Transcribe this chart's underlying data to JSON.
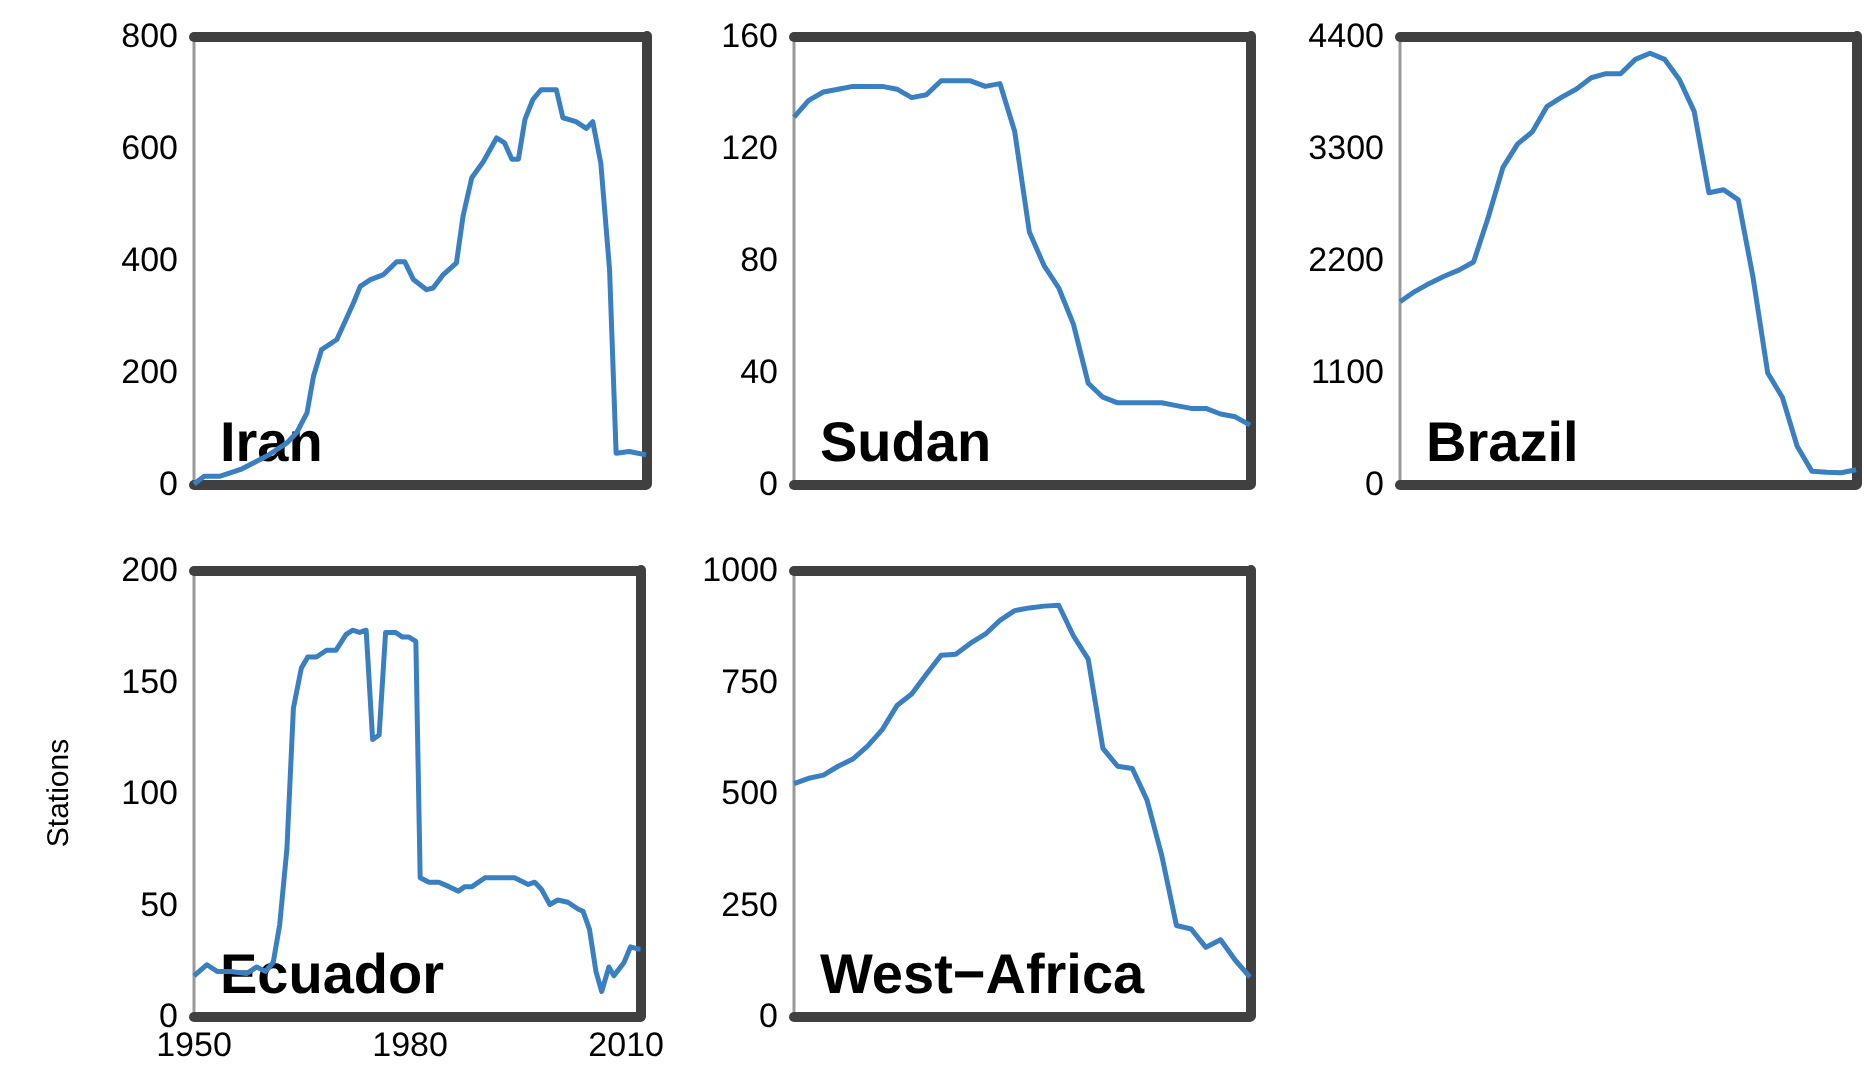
{
  "chart_data": [
    {
      "type": "line",
      "title": "Iran",
      "xlim": [
        1950,
        2012
      ],
      "ylim": [
        0,
        800
      ],
      "yticks": [
        0,
        200,
        400,
        600,
        800
      ],
      "tick_labels": "y",
      "x": [
        1950.0,
        1951.4,
        1953.6,
        1956.4,
        1960.0,
        1962.8,
        1964.1,
        1965.5,
        1966.4,
        1967.5,
        1969.6,
        1971.9,
        1972.8,
        1974.2,
        1976.0,
        1977.8,
        1978.9,
        1980.1,
        1981.9,
        1982.8,
        1984.2,
        1986.0,
        1986.9,
        1988.1,
        1989.7,
        1991.5,
        1992.6,
        1993.6,
        1994.5,
        1995.4,
        1996.5,
        1997.6,
        1999.7,
        2000.6,
        2002.4,
        2003.8,
        2004.7,
        2005.8,
        2007.0,
        2007.9,
        2009.7,
        2012.0
      ],
      "series": [
        {
          "color": "#3a7fc1",
          "values": [
            0,
            14,
            14,
            26,
            50,
            74,
            92,
            127,
            193,
            240,
            258,
            324,
            353,
            365,
            374,
            397,
            397,
            365,
            347,
            350,
            374,
            395,
            478,
            547,
            576,
            618,
            609,
            580,
            580,
            651,
            687,
            704,
            704,
            654,
            647,
            635,
            647,
            573,
            383,
            55,
            58,
            52
          ]
        }
      ]
    },
    {
      "type": "line",
      "title": "Sudan",
      "ylim": [
        0,
        160
      ],
      "yticks": [
        0,
        40,
        80,
        120,
        160
      ],
      "tick_labels": "y",
      "categories": [
        null,
        null,
        null,
        null,
        null,
        null,
        null,
        null,
        null,
        null,
        null,
        null,
        null,
        null,
        null,
        null,
        null,
        null,
        null,
        null,
        null,
        null,
        null,
        null,
        null,
        null,
        null,
        null,
        null,
        null,
        null,
        null
      ],
      "series": [
        {
          "color": "#3a7fc1",
          "values": [
            131,
            137,
            140,
            141,
            142,
            142,
            142,
            141,
            138,
            139,
            144,
            144,
            144,
            142,
            143,
            126,
            90,
            78,
            70,
            57,
            36,
            31,
            29,
            29,
            29,
            29,
            28,
            27,
            27,
            25,
            24,
            21
          ]
        }
      ]
    },
    {
      "type": "line",
      "title": "Brazil",
      "ylim": [
        0,
        4400
      ],
      "yticks": [
        0,
        1100,
        2200,
        3300,
        4400
      ],
      "tick_labels": "y",
      "categories": [
        null,
        null,
        null,
        null,
        null,
        null,
        null,
        null,
        null,
        null,
        null,
        null,
        null,
        null,
        null,
        null,
        null,
        null,
        null,
        null,
        null,
        null,
        null,
        null,
        null,
        null,
        null,
        null,
        null,
        null,
        null,
        null
      ],
      "series": [
        {
          "color": "#3a7fc1",
          "values": [
            1790,
            1890,
            1970,
            2040,
            2100,
            2180,
            2620,
            3110,
            3340,
            3460,
            3710,
            3800,
            3880,
            3990,
            4030,
            4030,
            4170,
            4230,
            4170,
            3970,
            3660,
            2860,
            2890,
            2790,
            2030,
            1090,
            850,
            370,
            125,
            115,
            110,
            140
          ]
        }
      ]
    },
    {
      "type": "line",
      "title": "Ecuador",
      "ylabel": "Stations",
      "xlim": [
        1950,
        2012
      ],
      "xticks": [
        1950,
        1980,
        2010
      ],
      "ylim": [
        0,
        200
      ],
      "yticks": [
        0,
        50,
        100,
        150,
        200
      ],
      "x": [
        1950.0,
        1951.8,
        1953.2,
        1955.1,
        1957.3,
        1958.7,
        1959.9,
        1961.0,
        1961.9,
        1962.9,
        1963.8,
        1964.9,
        1965.8,
        1967.0,
        1968.4,
        1969.7,
        1971.1,
        1972.0,
        1973.0,
        1973.9,
        1974.8,
        1975.7,
        1976.6,
        1978.0,
        1978.9,
        1979.8,
        1980.8,
        1981.4,
        1982.6,
        1984.0,
        1985.4,
        1986.7,
        1987.6,
        1988.6,
        1990.4,
        1991.8,
        1994.5,
        1996.4,
        1997.3,
        1998.2,
        1999.4,
        2000.5,
        2001.9,
        2003.3,
        2004.0,
        2004.9,
        2005.8,
        2006.6,
        2007.6,
        2008.3,
        2009.7,
        2010.6,
        2011.7,
        2012.0
      ],
      "series": [
        {
          "color": "#3a7fc1",
          "values": [
            18,
            23,
            20,
            20,
            19,
            22,
            20,
            24,
            41,
            75,
            138,
            156,
            161,
            161,
            164,
            164,
            171,
            173,
            172,
            173,
            124,
            126,
            172,
            172,
            170,
            170,
            168,
            62,
            60,
            60,
            58,
            56,
            58,
            58,
            62,
            62,
            62,
            59,
            60,
            57,
            50,
            52,
            51,
            48,
            47,
            39,
            20,
            11,
            22,
            18,
            24,
            31,
            30,
            30
          ]
        }
      ]
    },
    {
      "type": "line",
      "title": "West−Africa",
      "ylim": [
        0,
        1000
      ],
      "yticks": [
        0,
        250,
        500,
        750,
        1000
      ],
      "tick_labels": "y",
      "categories": [
        null,
        null,
        null,
        null,
        null,
        null,
        null,
        null,
        null,
        null,
        null,
        null,
        null,
        null,
        null,
        null,
        null,
        null,
        null,
        null,
        null,
        null,
        null,
        null,
        null,
        null,
        null,
        null,
        null,
        null,
        null,
        null
      ],
      "series": [
        {
          "color": "#3a7fc1",
          "values": [
            521,
            533,
            540,
            560,
            576,
            605,
            642,
            696,
            722,
            766,
            809,
            811,
            836,
            856,
            887,
            909,
            915,
            919,
            921,
            852,
            800,
            600,
            560,
            555,
            484,
            360,
            203,
            195,
            154,
            171,
            125,
            87
          ]
        }
      ]
    }
  ]
}
